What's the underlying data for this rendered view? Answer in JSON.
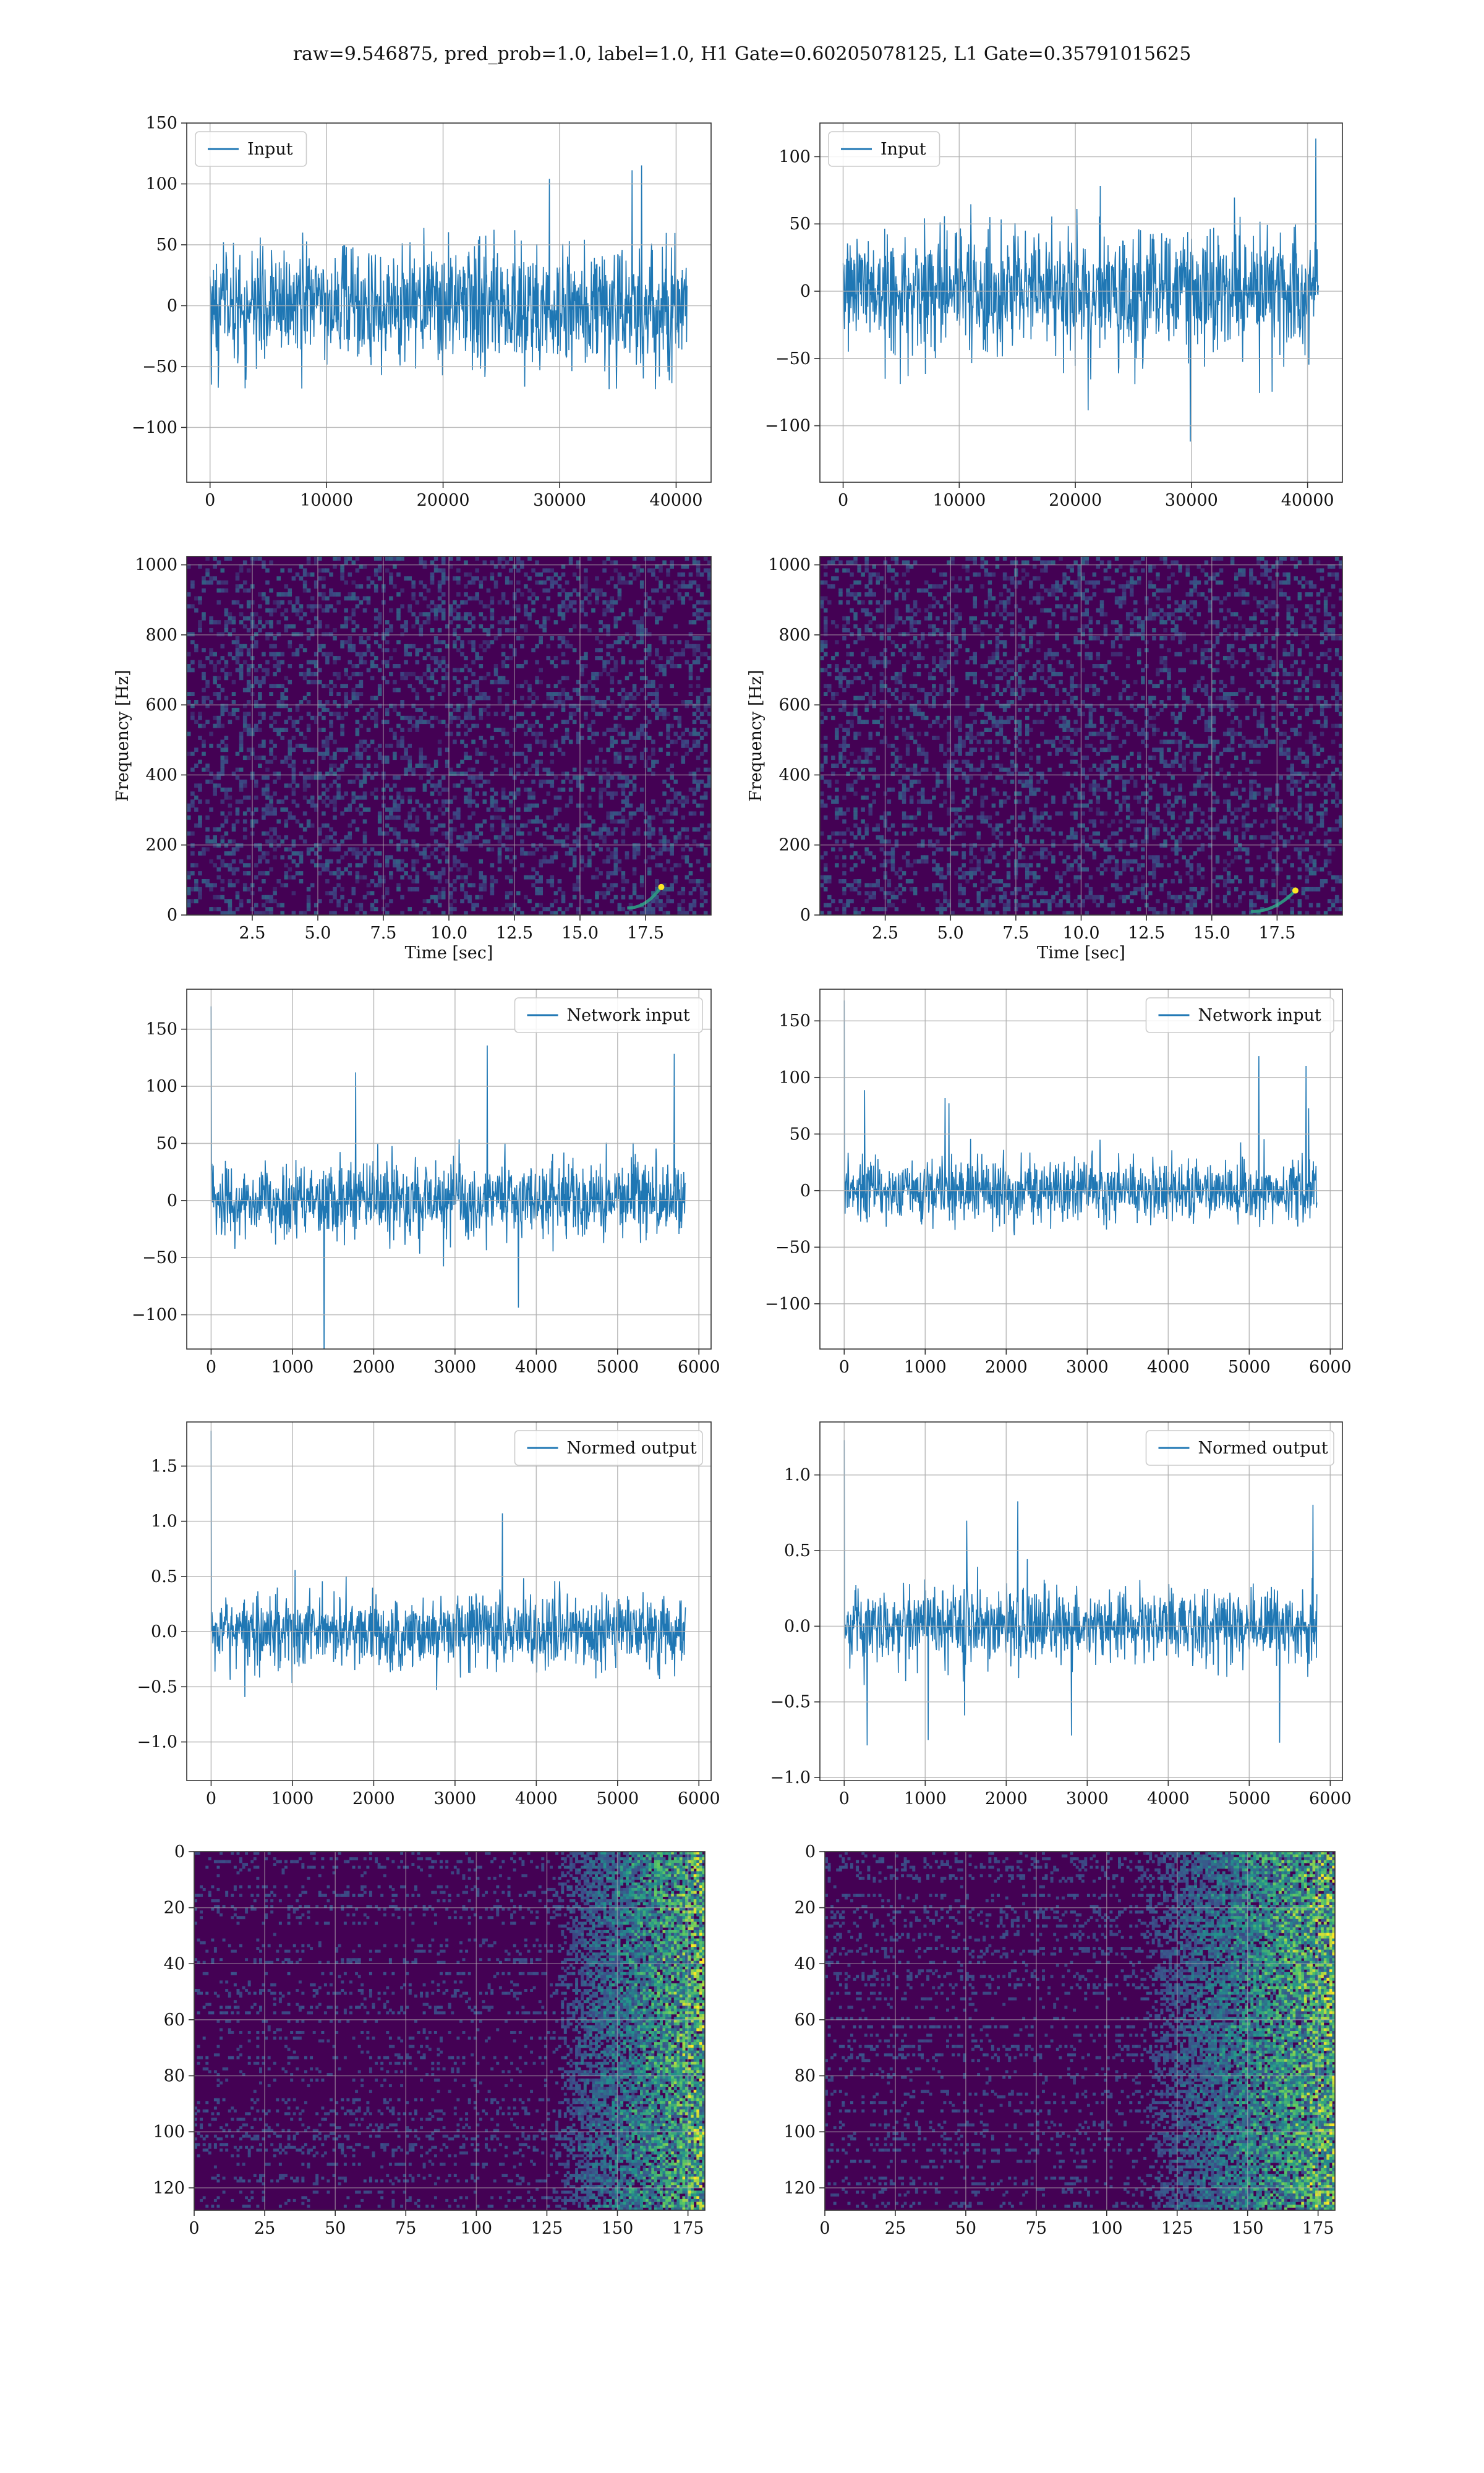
{
  "suptitle": "raw=9.546875, pred_prob=1.0, label=1.0, H1 Gate=0.60205078125, L1 Gate=0.35791015625",
  "colors": {
    "line": "#1f77b4",
    "grid": "#b0b0b0",
    "viridis_dark": "#440154",
    "viridis_mid": "#21918c",
    "viridis_bright": "#fde725"
  },
  "chart_data": [
    {
      "type": "line",
      "legend": "Input",
      "legend_loc": "upper-left",
      "xlim": [
        -2000,
        43000
      ],
      "ylim": [
        -145,
        150
      ],
      "xticks": [
        0,
        10000,
        20000,
        30000,
        40000
      ],
      "yticks": [
        -100,
        -50,
        0,
        50,
        100,
        150
      ],
      "x_range": [
        0,
        40960
      ],
      "amp_typical": 45,
      "amp_max": 133,
      "grid": true
    },
    {
      "type": "line",
      "legend": "Input",
      "legend_loc": "upper-left",
      "xlim": [
        -2000,
        43000
      ],
      "ylim": [
        -142,
        125
      ],
      "xticks": [
        0,
        10000,
        20000,
        30000,
        40000
      ],
      "yticks": [
        -100,
        -50,
        0,
        50,
        100
      ],
      "x_range": [
        0,
        40960
      ],
      "amp_typical": 42,
      "amp_max": 122,
      "grid": true
    },
    {
      "type": "heatmap",
      "cmap": "viridis",
      "xlim": [
        0,
        20
      ],
      "ylim": [
        0,
        1024
      ],
      "xticks": [
        2.5,
        5.0,
        7.5,
        10.0,
        12.5,
        15.0,
        17.5
      ],
      "xtick_labels": [
        "2.5",
        "5.0",
        "7.5",
        "10.0",
        "12.5",
        "15.0",
        "17.5"
      ],
      "yticks": [
        0,
        200,
        400,
        600,
        800,
        1000
      ],
      "xlabel": "Time [sec]",
      "ylabel": "Frequency [Hz]",
      "chirp": {
        "t_start": 16.8,
        "t_end": 18.1,
        "f_start": 20,
        "f_end": 80
      },
      "grid": true
    },
    {
      "type": "heatmap",
      "cmap": "viridis",
      "xlim": [
        0,
        20
      ],
      "ylim": [
        0,
        1024
      ],
      "xticks": [
        2.5,
        5.0,
        7.5,
        10.0,
        12.5,
        15.0,
        17.5
      ],
      "xtick_labels": [
        "2.5",
        "5.0",
        "7.5",
        "10.0",
        "12.5",
        "15.0",
        "17.5"
      ],
      "yticks": [
        0,
        200,
        400,
        600,
        800,
        1000
      ],
      "xlabel": "Time [sec]",
      "ylabel": "Frequency [Hz]",
      "chirp": {
        "t_start": 16.5,
        "t_end": 18.2,
        "f_start": 10,
        "f_end": 70
      },
      "grid": true
    },
    {
      "type": "line",
      "legend": "Network input",
      "legend_loc": "upper-right",
      "xlim": [
        -300,
        6150
      ],
      "ylim": [
        -130,
        185
      ],
      "xticks": [
        0,
        1000,
        2000,
        3000,
        4000,
        5000,
        6000
      ],
      "yticks": [
        -100,
        -50,
        0,
        50,
        100,
        150
      ],
      "x_range": [
        0,
        5840
      ],
      "amp_typical": 30,
      "amp_max": 150,
      "spike": 170,
      "grid": true
    },
    {
      "type": "line",
      "legend": "Network input",
      "legend_loc": "upper-right",
      "xlim": [
        -300,
        6150
      ],
      "ylim": [
        -140,
        178
      ],
      "xticks": [
        0,
        1000,
        2000,
        3000,
        4000,
        5000,
        6000
      ],
      "yticks": [
        -100,
        -50,
        0,
        50,
        100,
        150
      ],
      "x_range": [
        0,
        5840
      ],
      "amp_typical": 25,
      "amp_max": 120,
      "spike": 168,
      "grid": true
    },
    {
      "type": "line",
      "legend": "Normed output",
      "legend_loc": "upper-right",
      "xlim": [
        -300,
        6150
      ],
      "ylim": [
        -1.35,
        1.9
      ],
      "xticks": [
        0,
        1000,
        2000,
        3000,
        4000,
        5000,
        6000
      ],
      "yticks": [
        -1.0,
        -0.5,
        0.0,
        0.5,
        1.0,
        1.5
      ],
      "ytick_labels": [
        "−1.0",
        "−0.5",
        "0.0",
        "0.5",
        "1.0",
        "1.5"
      ],
      "x_range": [
        0,
        5840
      ],
      "amp_typical": 0.3,
      "amp_max": 1.45,
      "spike": 1.82,
      "grid": true
    },
    {
      "type": "line",
      "legend": "Normed output",
      "legend_loc": "upper-right",
      "xlim": [
        -300,
        6150
      ],
      "ylim": [
        -1.02,
        1.35
      ],
      "xticks": [
        0,
        1000,
        2000,
        3000,
        4000,
        5000,
        6000
      ],
      "yticks": [
        -1.0,
        -0.5,
        0.0,
        0.5,
        1.0
      ],
      "ytick_labels": [
        "−1.0",
        "−0.5",
        "0.0",
        "0.5",
        "1.0"
      ],
      "x_range": [
        0,
        5840
      ],
      "amp_typical": 0.22,
      "amp_max": 0.9,
      "spike": 1.23,
      "grid": true
    },
    {
      "type": "heatmap",
      "cmap": "viridis",
      "xlim": [
        0,
        181
      ],
      "ylim": [
        128,
        0
      ],
      "xticks": [
        0,
        25,
        50,
        75,
        100,
        125,
        150,
        175
      ],
      "yticks": [
        0,
        20,
        40,
        60,
        80,
        100,
        120
      ],
      "bright_cols": [
        140,
        181
      ],
      "grid": true
    },
    {
      "type": "heatmap",
      "cmap": "viridis",
      "xlim": [
        0,
        181
      ],
      "ylim": [
        128,
        0
      ],
      "xticks": [
        0,
        25,
        50,
        75,
        100,
        125,
        150,
        175
      ],
      "yticks": [
        0,
        20,
        40,
        60,
        80,
        100,
        120
      ],
      "bright_cols": [
        125,
        181
      ],
      "grid": true
    }
  ]
}
